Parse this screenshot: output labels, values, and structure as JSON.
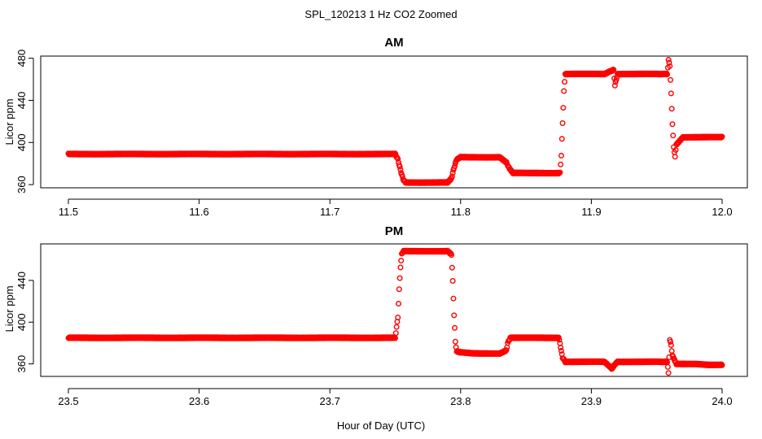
{
  "figure": {
    "title": "SPL_120213  1 Hz CO2 Zoomed",
    "xlabel": "Hour of Day (UTC)"
  },
  "chart_data": [
    {
      "type": "scatter",
      "title": "AM",
      "xlabel": "Hour of Day (UTC)",
      "ylabel": "Licor ppm",
      "xlim": [
        11.5,
        12.0
      ],
      "ylim": [
        357,
        482
      ],
      "xticks": [
        11.5,
        11.6,
        11.7,
        11.8,
        11.9,
        12.0
      ],
      "xtick_labels": [
        "11.5",
        "11.6",
        "11.7",
        "11.8",
        "11.9",
        "12.0"
      ],
      "yticks": [
        360,
        400,
        440,
        480
      ],
      "ytick_labels": [
        "360",
        "400",
        "440",
        "480"
      ],
      "grid": false,
      "marker_color": "#ff0000",
      "series": [
        {
          "x": [
            11.5,
            11.52,
            11.54,
            11.56,
            11.58,
            11.6,
            11.62,
            11.64,
            11.66,
            11.68,
            11.7,
            11.72,
            11.74,
            11.75,
            11.752,
            11.754,
            11.756,
            11.758,
            11.76,
            11.77,
            11.78,
            11.79,
            11.793,
            11.795,
            11.797,
            11.8,
            11.81,
            11.82,
            11.83,
            11.835,
            11.837,
            11.84,
            11.85,
            11.86,
            11.87,
            11.876,
            11.877,
            11.878,
            11.879,
            11.88,
            11.89,
            11.9,
            11.91,
            11.917,
            11.918,
            11.92,
            11.93,
            11.94,
            11.95,
            11.958,
            11.959,
            11.96,
            11.961,
            11.962,
            11.963,
            11.964,
            11.965,
            11.97,
            11.98,
            11.99,
            12.0
          ],
          "y": [
            389,
            389,
            389,
            389,
            389,
            389,
            389,
            389,
            389,
            389,
            389,
            389,
            389,
            389,
            384,
            374,
            365,
            362,
            362,
            362,
            362,
            362,
            366,
            376,
            384,
            386,
            386,
            386,
            386,
            381,
            376,
            371,
            371,
            371,
            371,
            371,
            388,
            418,
            449,
            465,
            465,
            465,
            465,
            469,
            454,
            465,
            465,
            465,
            465,
            465,
            478,
            473,
            446,
            418,
            395,
            387,
            398,
            405,
            405,
            405,
            405
          ]
        }
      ]
    },
    {
      "type": "scatter",
      "title": "PM",
      "xlabel": "Hour of Day (UTC)",
      "ylabel": "Licor ppm",
      "xlim": [
        23.5,
        24.0
      ],
      "ylim": [
        348,
        475
      ],
      "xticks": [
        23.5,
        23.6,
        23.7,
        23.8,
        23.9,
        24.0
      ],
      "xtick_labels": [
        "23.5",
        "23.6",
        "23.7",
        "23.8",
        "23.9",
        "24.0"
      ],
      "yticks": [
        360,
        400,
        440
      ],
      "ytick_labels": [
        "360",
        "400",
        "440"
      ],
      "grid": false,
      "marker_color": "#ff0000",
      "series": [
        {
          "x": [
            23.5,
            23.52,
            23.54,
            23.56,
            23.58,
            23.6,
            23.62,
            23.64,
            23.66,
            23.68,
            23.7,
            23.72,
            23.74,
            23.75,
            23.752,
            23.753,
            23.754,
            23.755,
            23.756,
            23.76,
            23.77,
            23.78,
            23.79,
            23.793,
            23.794,
            23.795,
            23.796,
            23.797,
            23.8,
            23.81,
            23.82,
            23.83,
            23.835,
            23.836,
            23.838,
            23.84,
            23.85,
            23.86,
            23.87,
            23.875,
            23.876,
            23.877,
            23.878,
            23.88,
            23.89,
            23.9,
            23.91,
            23.916,
            23.917,
            23.92,
            23.93,
            23.94,
            23.95,
            23.958,
            23.959,
            23.96,
            23.961,
            23.962,
            23.965,
            23.97,
            23.98,
            23.99,
            24.0
          ],
          "y": [
            385,
            385,
            385,
            385,
            385,
            385,
            385,
            385,
            385,
            385,
            385,
            385,
            385,
            385,
            405,
            431,
            453,
            465,
            468,
            468,
            468,
            468,
            468,
            465,
            439,
            407,
            381,
            372,
            371,
            370,
            370,
            370,
            373,
            380,
            385,
            385,
            385,
            385,
            385,
            385,
            380,
            372,
            366,
            362,
            362,
            362,
            362,
            355,
            358,
            362,
            362,
            362,
            362,
            362,
            351,
            383,
            378,
            368,
            360,
            360,
            360,
            359,
            359
          ]
        }
      ]
    }
  ]
}
